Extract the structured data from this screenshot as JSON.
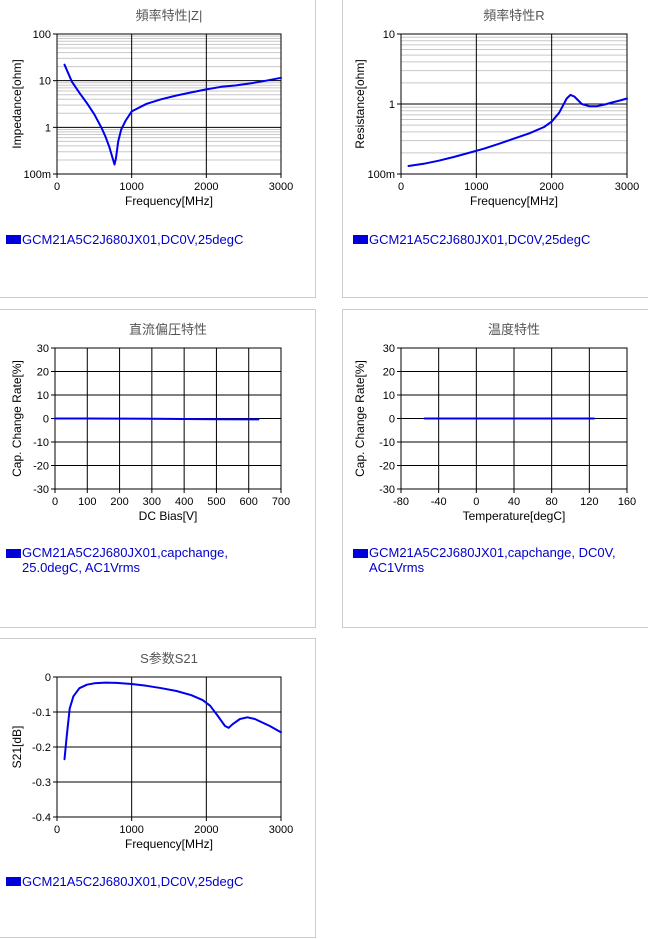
{
  "chart_data": [
    {
      "type": "line",
      "title": "頻率特性|Z|",
      "xlabel": "Frequency[MHz]",
      "ylabel": "Impedance[ohm]",
      "xlim": [
        0,
        3000
      ],
      "ylim": [
        0.1,
        100
      ],
      "yscale": "log",
      "xticks": [
        0,
        1000,
        2000,
        3000
      ],
      "yticks": [
        {
          "v": 0.1,
          "label": "100m"
        },
        {
          "v": 1,
          "label": "1"
        },
        {
          "v": 10,
          "label": "10"
        },
        {
          "v": 100,
          "label": "100"
        }
      ],
      "grid": true,
      "legend": "GCM21A5C2J680JX01,DC0V,25degC",
      "series": [
        {
          "color": "#0000ee",
          "x": [
            100,
            200,
            300,
            400,
            500,
            600,
            650,
            700,
            740,
            770,
            790,
            820,
            860,
            920,
            1000,
            1200,
            1400,
            1600,
            1800,
            2000,
            2200,
            2400,
            2600,
            2800,
            3000
          ],
          "y": [
            22,
            9.5,
            5.5,
            3.3,
            1.9,
            0.95,
            0.63,
            0.38,
            0.23,
            0.16,
            0.22,
            0.5,
            0.9,
            1.4,
            2.2,
            3.2,
            4.0,
            4.8,
            5.6,
            6.5,
            7.4,
            7.9,
            8.8,
            10.0,
            11.5
          ]
        }
      ]
    },
    {
      "type": "line",
      "title": "頻率特性R",
      "xlabel": "Frequency[MHz]",
      "ylabel": "Resistance[ohm]",
      "xlim": [
        0,
        3000
      ],
      "ylim": [
        0.1,
        10
      ],
      "yscale": "log",
      "xticks": [
        0,
        1000,
        2000,
        3000
      ],
      "yticks": [
        {
          "v": 0.1,
          "label": "100m"
        },
        {
          "v": 1,
          "label": "1"
        },
        {
          "v": 10,
          "label": "10"
        }
      ],
      "grid": true,
      "legend": "GCM21A5C2J680JX01,DC0V,25degC",
      "series": [
        {
          "color": "#0000ee",
          "x": [
            100,
            300,
            500,
            700,
            900,
            1100,
            1300,
            1500,
            1700,
            1900,
            2000,
            2100,
            2200,
            2250,
            2300,
            2400,
            2500,
            2600,
            2700,
            2800,
            2900,
            3000
          ],
          "y": [
            0.13,
            0.14,
            0.155,
            0.175,
            0.2,
            0.23,
            0.27,
            0.32,
            0.38,
            0.47,
            0.56,
            0.75,
            1.2,
            1.35,
            1.28,
            1.0,
            0.93,
            0.93,
            0.98,
            1.05,
            1.12,
            1.2
          ]
        }
      ]
    },
    {
      "type": "line",
      "title": "直流偏圧特性",
      "xlabel": "DC Bias[V]",
      "ylabel": "Cap. Change Rate[%]",
      "xlim": [
        0,
        700
      ],
      "ylim": [
        -30,
        30
      ],
      "xticks": [
        0,
        100,
        200,
        300,
        400,
        500,
        600,
        700
      ],
      "yticks": [
        -30,
        -20,
        -10,
        0,
        10,
        20,
        30
      ],
      "grid": true,
      "legend": "GCM21A5C2J680JX01,capchange,\n25.0degC, AC1Vrms",
      "series": [
        {
          "color": "#0000ee",
          "x": [
            0,
            100,
            200,
            300,
            400,
            500,
            630
          ],
          "y": [
            0,
            0,
            -0.05,
            -0.1,
            -0.2,
            -0.3,
            -0.4
          ]
        }
      ]
    },
    {
      "type": "line",
      "title": "温度特性",
      "xlabel": "Temperature[degC]",
      "ylabel": "Cap. Change Rate[%]",
      "xlim": [
        -80,
        160
      ],
      "ylim": [
        -30,
        30
      ],
      "xticks": [
        -80,
        -40,
        0,
        40,
        80,
        120,
        160
      ],
      "yticks": [
        -30,
        -20,
        -10,
        0,
        10,
        20,
        30
      ],
      "grid": true,
      "legend": "GCM21A5C2J680JX01,capchange, DC0V,\nAC1Vrms",
      "series": [
        {
          "color": "#0000ee",
          "x": [
            -55,
            -25,
            0,
            25,
            50,
            85,
            125
          ],
          "y": [
            0,
            0,
            0,
            0,
            0,
            0,
            0
          ]
        }
      ]
    },
    {
      "type": "line",
      "title": "S参数S21",
      "xlabel": "Frequency[MHz]",
      "ylabel": "S21[dB]",
      "xlim": [
        0,
        3000
      ],
      "ylim": [
        -0.4,
        0
      ],
      "xticks": [
        0,
        1000,
        2000,
        3000
      ],
      "yticks": [
        -0.4,
        -0.3,
        -0.2,
        -0.1,
        0
      ],
      "grid": true,
      "legend": "GCM21A5C2J680JX01,DC0V,25degC",
      "series": [
        {
          "color": "#0000ee",
          "x": [
            100,
            130,
            170,
            220,
            300,
            400,
            500,
            650,
            800,
            1000,
            1200,
            1400,
            1600,
            1800,
            1950,
            2050,
            2150,
            2250,
            2300,
            2350,
            2450,
            2550,
            2650,
            2750,
            2850,
            2950,
            3000
          ],
          "y": [
            -0.235,
            -0.17,
            -0.09,
            -0.055,
            -0.032,
            -0.022,
            -0.018,
            -0.016,
            -0.017,
            -0.02,
            -0.025,
            -0.032,
            -0.04,
            -0.052,
            -0.066,
            -0.082,
            -0.11,
            -0.14,
            -0.145,
            -0.135,
            -0.12,
            -0.115,
            -0.12,
            -0.13,
            -0.14,
            -0.152,
            -0.158
          ]
        }
      ]
    }
  ]
}
